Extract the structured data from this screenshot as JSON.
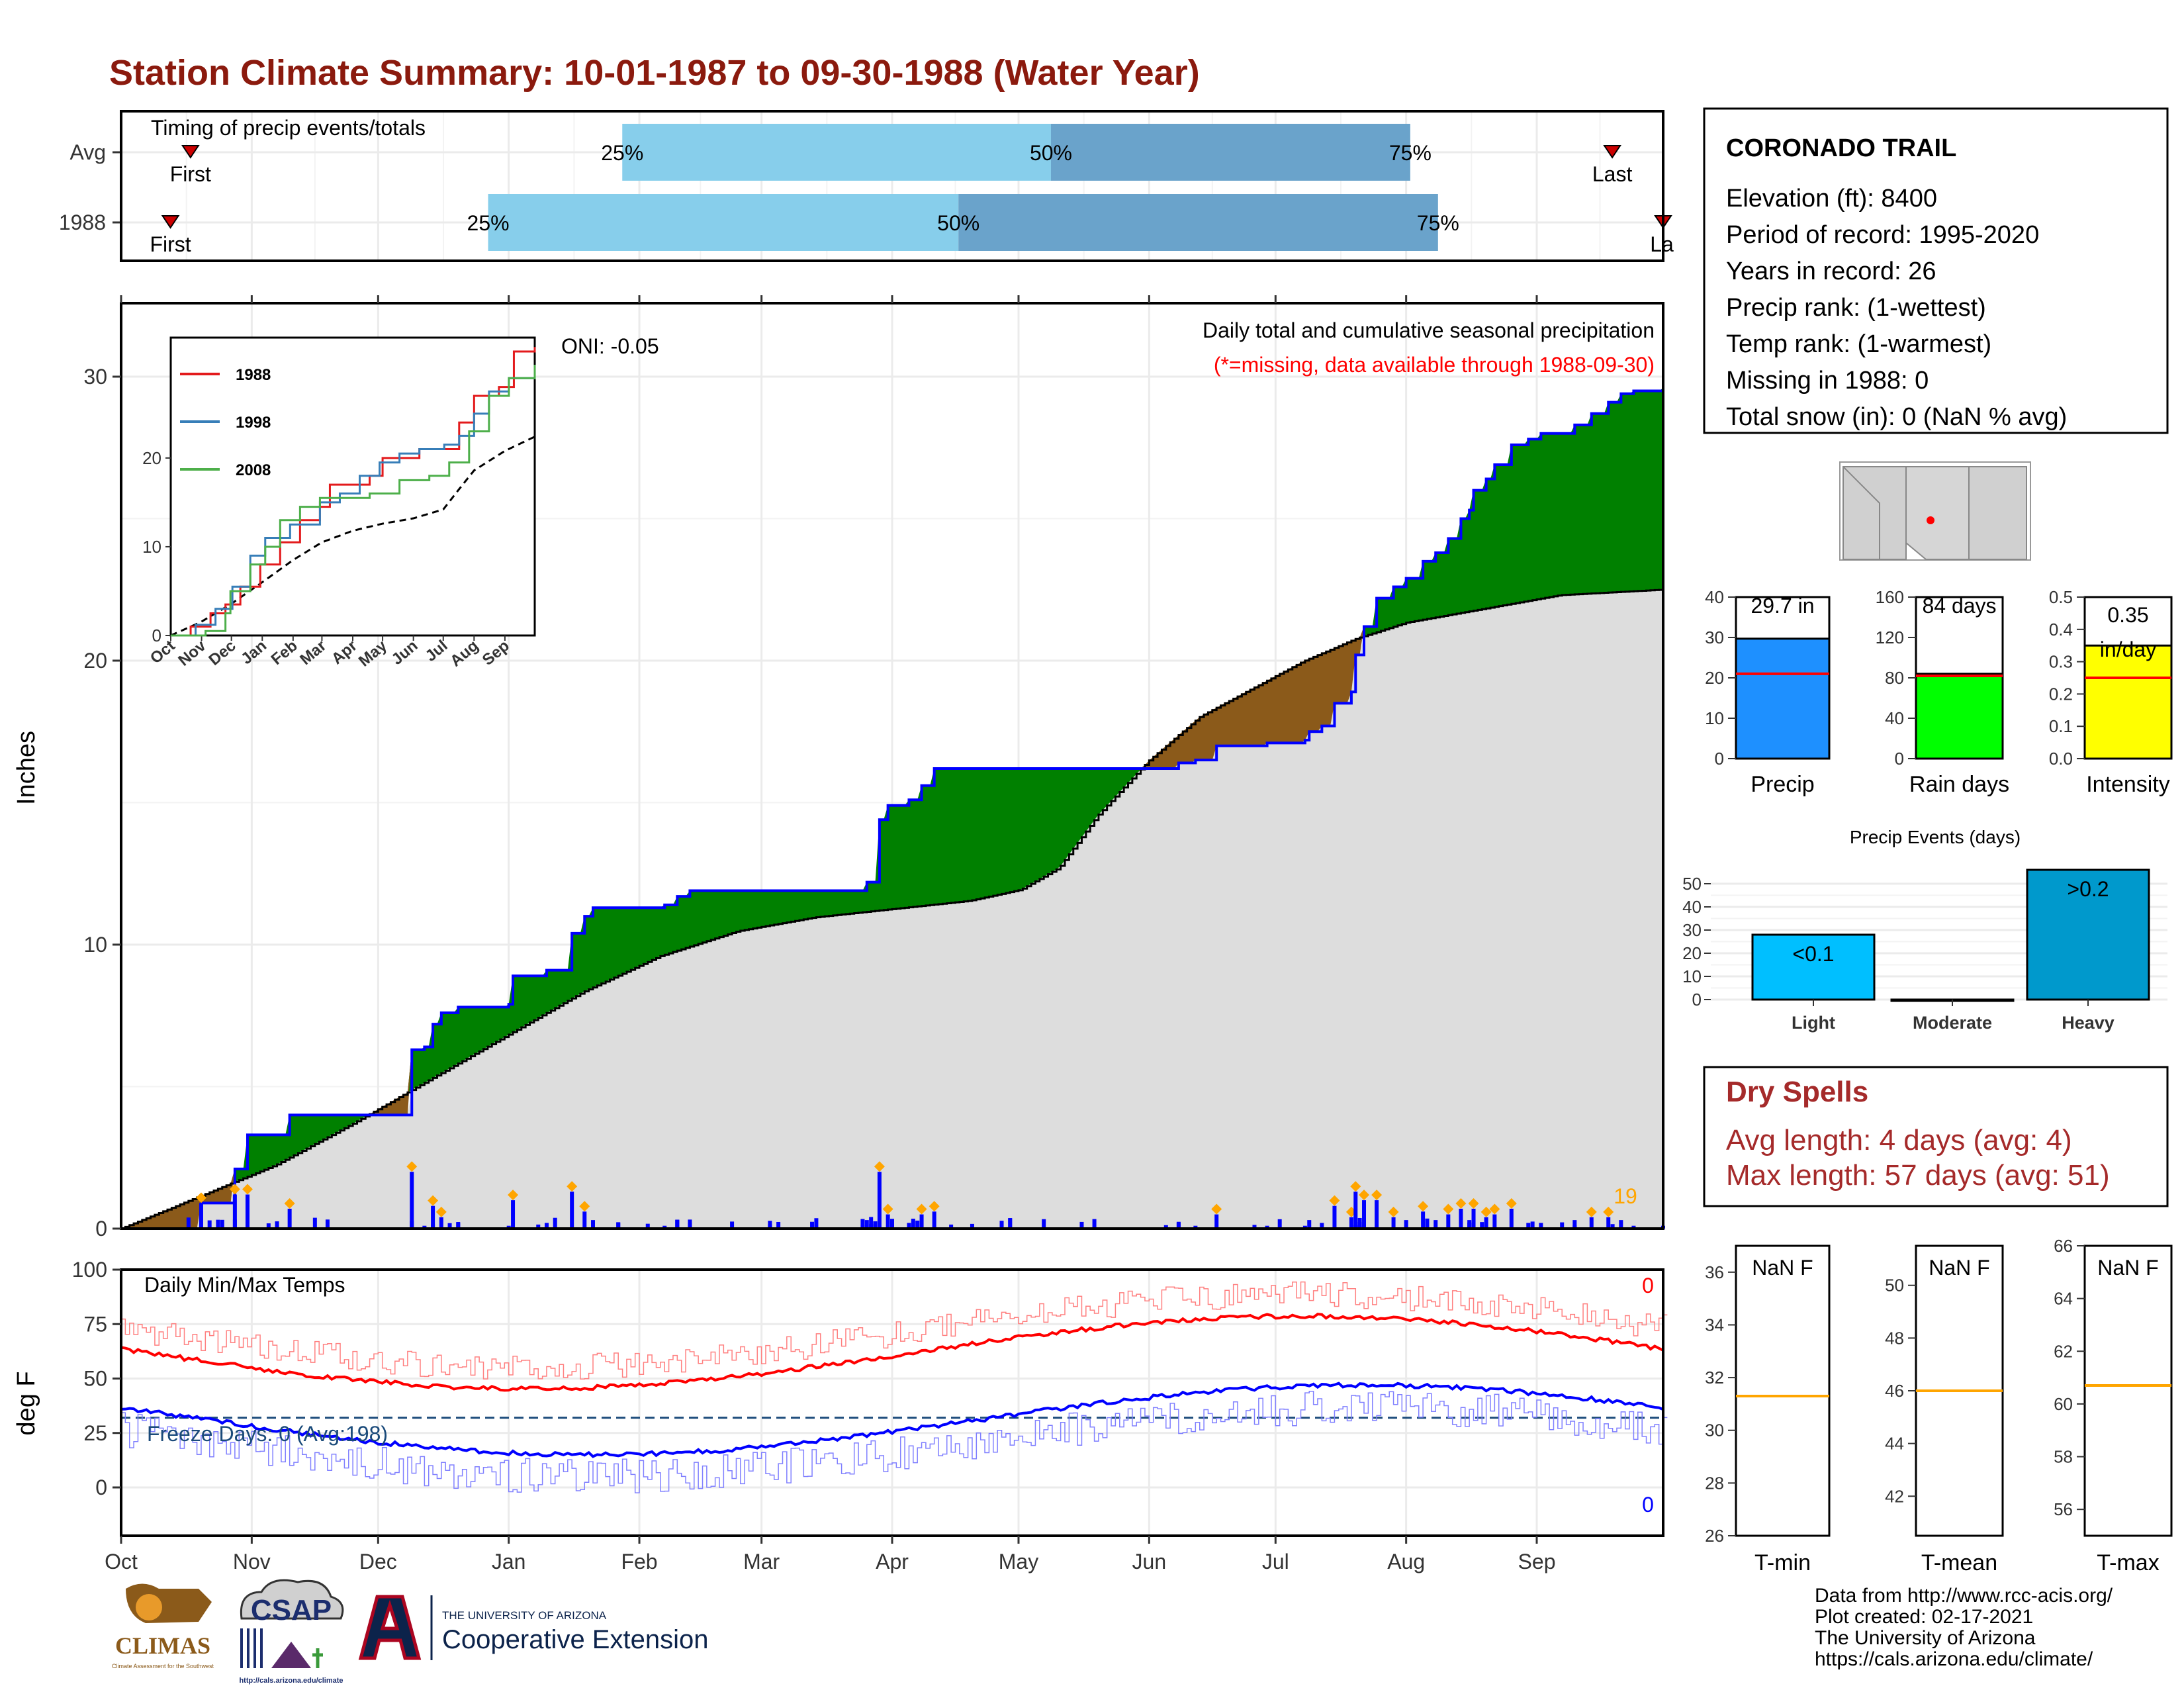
{
  "title": "Station Climate Summary: 10-01-1987 to 09-30-1988 (Water Year)",
  "timing": {
    "label": "Timing of precip events/totals",
    "rows": [
      "Avg",
      "1988"
    ],
    "first_label": "First",
    "last_label": "Last",
    "last_label_cut": "La",
    "pct_labels": [
      "25%",
      "50%",
      "75%"
    ],
    "avg": {
      "first": 0.045,
      "p25": 0.325,
      "p50": 0.603,
      "p75": 0.836,
      "last": 0.967
    },
    "y1988": {
      "first": 0.032,
      "p25": 0.238,
      "p50": 0.543,
      "p75": 0.854,
      "last": 1.0
    },
    "colors": {
      "light": "#87ceeb",
      "dark": "#6aa3cb",
      "marker": "#cc0000"
    }
  },
  "precip_panel": {
    "ylabel": "Inches",
    "oni": "ONI: -0.05",
    "subtitle": "Daily total and cumulative seasonal precipitation",
    "missing_note": "(*=missing, data available through 1988-09-30)",
    "count_label": "19",
    "colors": {
      "above": "#008000",
      "normal": "#dddddd",
      "below": "#8b5a1a",
      "line": "#0000ff",
      "daily": "#0000ff",
      "marker": "#ffa500",
      "note": "#ff0000",
      "count": "#ffa500"
    }
  },
  "inset": {
    "series_names": [
      "1988",
      "1998",
      "2008"
    ],
    "series_colors": [
      "#e31a1c",
      "#377eb8",
      "#4daf4a"
    ],
    "months": [
      "Oct",
      "Nov",
      "Dec",
      "Jan",
      "Feb",
      "Mar",
      "Apr",
      "May",
      "Jun",
      "Jul",
      "Aug",
      "Sep"
    ],
    "yticks": [
      "0",
      "10",
      "20"
    ]
  },
  "temp_panel": {
    "ylabel": "deg F",
    "title": "Daily Min/Max Temps",
    "freeze_label": "Freeze Days: 0 (Avg:198)",
    "max_count": "0",
    "min_count": "0",
    "yticks": [
      "0",
      "25",
      "50",
      "75",
      "100"
    ],
    "colors": {
      "max": "#ff0000",
      "min": "#0000ff",
      "freeze": "#1a4a7a"
    }
  },
  "months_axis": [
    "Oct",
    "Nov",
    "Dec",
    "Jan",
    "Feb",
    "Mar",
    "Apr",
    "May",
    "Jun",
    "Jul",
    "Aug",
    "Sep"
  ],
  "station": {
    "name": "CORONADO TRAIL",
    "lines": [
      "Elevation (ft): 8400",
      "Period of record: 1995-2020",
      "Years in record: 26",
      "Precip rank:  (1-wettest)",
      "Temp rank:  (1-warmest)",
      "Missing in 1988: 0",
      "Total snow (in): 0 (NaN % avg)"
    ]
  },
  "summary_bars": [
    {
      "name": "Precip",
      "label": "29.7 in",
      "value": 29.7,
      "avg": 21,
      "ymax": 40,
      "ticks": [
        "0",
        "10",
        "20",
        "30",
        "40"
      ],
      "color": "#1e90ff"
    },
    {
      "name": "Rain days",
      "label": "84 days",
      "value": 84,
      "avg": 82,
      "ymax": 160,
      "ticks": [
        "0",
        "40",
        "80",
        "120",
        "160"
      ],
      "color": "#00ff00"
    },
    {
      "name": "Intensity",
      "label": "0.35",
      "label2": "in/day",
      "value": 0.35,
      "avg": 0.25,
      "ymax": 0.5,
      "ticks": [
        "0.0",
        "0.1",
        "0.2",
        "0.3",
        "0.4",
        "0.5"
      ],
      "color": "#ffff00"
    }
  ],
  "events": {
    "title": "Precip Events (days)",
    "categories": [
      "Light",
      "Moderate",
      "Heavy"
    ],
    "values": [
      28,
      0,
      56
    ],
    "labels": [
      "<0.1",
      "",
      ">0.2"
    ],
    "colors": [
      "#00bfff",
      "#1e90ff",
      "#0099cc"
    ],
    "yticks": [
      "0",
      "10",
      "20",
      "30",
      "40",
      "50"
    ]
  },
  "dry_spells": {
    "title": "Dry Spells",
    "avg_length": "Avg length: 4 days (avg: 4)",
    "max_length": "Max length: 57 days (avg: 51)"
  },
  "temp_boxes": [
    {
      "name": "T-min",
      "label": "NaN F",
      "line": 31.3,
      "ymin": 26,
      "ymax": 37,
      "ticks": [
        "26",
        "28",
        "30",
        "32",
        "34",
        "36"
      ]
    },
    {
      "name": "T-mean",
      "label": "NaN F",
      "line": 46,
      "ymin": 40.5,
      "ymax": 51.5,
      "ticks": [
        "42",
        "44",
        "46",
        "48",
        "50"
      ]
    },
    {
      "name": "T-max",
      "label": "NaN F",
      "line": 60.7,
      "ymin": 55,
      "ymax": 66,
      "ticks": [
        "56",
        "58",
        "60",
        "62",
        "64",
        "66"
      ]
    }
  ],
  "logos": {
    "climas": "CLIMAS",
    "climas_sub": "Climate Assessment for the Southwest",
    "csap": "CSAP",
    "csap_url": "http://cals.arizona.edu/climate",
    "ua_line1": "THE UNIVERSITY OF ARIZONA",
    "ua_line2": "Cooperative Extension"
  },
  "footer": [
    "Data from http://www.rcc-acis.org/",
    "Plot created: 02-17-2021",
    "The University of Arizona",
    "https://cals.arizona.edu/climate/"
  ]
}
